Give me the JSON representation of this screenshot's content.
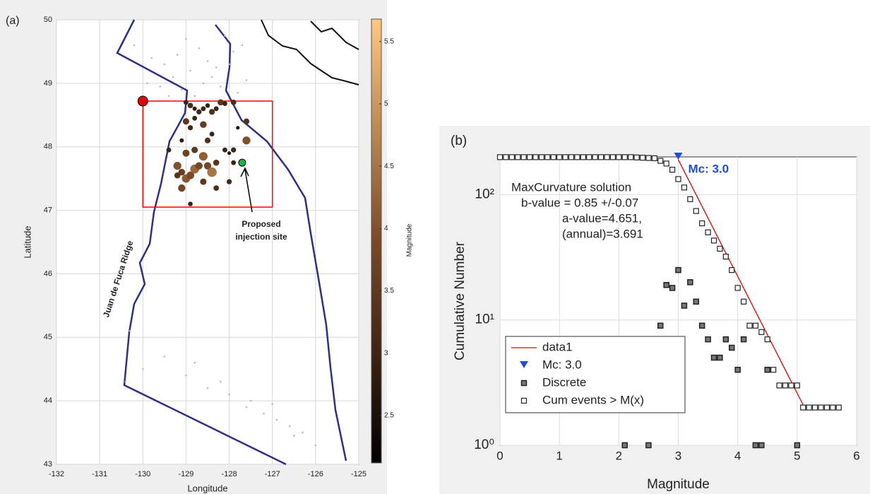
{
  "chart_data": [
    {
      "type": "map",
      "label": "(a)",
      "xlabel": "Longitude",
      "ylabel": "Latitude",
      "xlim": [
        -132,
        -125
      ],
      "ylim": [
        43,
        50
      ],
      "xticks": [
        -132,
        -131,
        -130,
        -129,
        -128,
        -127,
        -126,
        -125
      ],
      "yticks": [
        43,
        44,
        45,
        46,
        47,
        48,
        49,
        50
      ],
      "grid": true,
      "colorbar": {
        "label": "Magnitude",
        "clim": [
          2.12,
          5.68
        ],
        "ticks": [
          2.5,
          3,
          3.5,
          4,
          4.5,
          5,
          5.5
        ],
        "colors": [
          "#000000",
          "#7a4a26",
          "#ffc77f"
        ]
      },
      "background": {
        "color": "#b8b8d2",
        "x": [
          -130.2,
          -129.8,
          -129.5,
          -129.3,
          -129.1,
          -128.9,
          -128.6,
          -128.4,
          -128.2,
          -128.0,
          -127.9,
          -127.7,
          -129.6,
          -129.2,
          -128.8,
          -128.5,
          -128.3,
          -129.0,
          -128.7,
          -127.8,
          -129.9,
          -129.4,
          -128.1,
          -127.6,
          -130.4,
          -130.0,
          -129.0,
          -128.5,
          -128.0,
          -127.5,
          -127.2,
          -126.9,
          -126.6,
          -126.3,
          -126.0,
          -128.8,
          -128.2,
          -127.6,
          -127.0,
          -126.5,
          -129.5,
          -130.3
        ],
        "y": [
          49.6,
          49.4,
          49.3,
          49.1,
          48.9,
          49.2,
          49.0,
          49.1,
          48.95,
          49.3,
          49.5,
          49.6,
          48.95,
          49.45,
          48.8,
          49.35,
          49.25,
          49.7,
          49.55,
          48.85,
          49.0,
          48.8,
          49.75,
          49.05,
          44.3,
          44.5,
          44.4,
          44.2,
          44.1,
          44.0,
          43.8,
          43.7,
          43.6,
          43.5,
          43.3,
          44.6,
          44.3,
          43.9,
          43.95,
          43.45,
          44.7,
          45.1
        ]
      },
      "events": {
        "x": [
          -129.0,
          -128.9,
          -128.8,
          -128.7,
          -128.6,
          -128.5,
          -128.4,
          -128.3,
          -128.2,
          -128.1,
          -127.9,
          -129.0,
          -128.9,
          -128.8,
          -128.6,
          -128.5,
          -128.4,
          -127.8,
          -127.6,
          -127.6,
          -129.1,
          -129.4,
          -129.0,
          -128.8,
          -128.6,
          -128.5,
          -128.3,
          -128.1,
          -128.0,
          -127.9,
          -129.2,
          -129.1,
          -129.0,
          -128.9,
          -128.8,
          -128.7,
          -128.6,
          -128.3,
          -129.1,
          -128.9,
          -129.2,
          -128.4,
          -127.9,
          -128.0
        ],
        "y": [
          48.7,
          48.65,
          48.6,
          48.55,
          48.6,
          48.65,
          48.55,
          48.6,
          48.7,
          48.68,
          48.7,
          48.4,
          48.3,
          48.45,
          48.35,
          48.1,
          48.2,
          48.3,
          48.1,
          48.4,
          48.1,
          47.95,
          47.9,
          47.95,
          47.85,
          47.7,
          47.75,
          47.95,
          47.9,
          47.95,
          47.7,
          47.6,
          47.5,
          47.55,
          47.65,
          47.7,
          47.45,
          47.35,
          47.35,
          47.1,
          47.55,
          47.6,
          47.75,
          47.45
        ],
        "values": [
          3.0,
          3.2,
          2.8,
          3.1,
          3.0,
          2.9,
          3.3,
          3.0,
          3.4,
          3.0,
          3.2,
          3.5,
          3.1,
          3.0,
          3.6,
          3.3,
          3.0,
          2.6,
          4.0,
          3.3,
          2.8,
          3.0,
          3.7,
          3.5,
          4.2,
          3.8,
          3.4,
          3.0,
          2.6,
          3.1,
          4.0,
          3.6,
          4.1,
          3.9,
          4.3,
          3.8,
          3.5,
          3.2,
          3.8,
          2.9,
          3.4,
          4.5,
          3.0,
          3.1
        ]
      },
      "region": {
        "x": [
          -130,
          -127
        ],
        "y": [
          47.05,
          48.72
        ],
        "color": "#ff0000"
      },
      "sites": {
        "x": [
          -130,
          -127.7
        ],
        "y": [
          48.72,
          47.75
        ],
        "colors": [
          "#e00000",
          "#1db34a"
        ]
      },
      "annotations": [
        "Juan de Fuca Ridge",
        "Proposed",
        "injection site"
      ]
    },
    {
      "type": "line",
      "label": "(b)",
      "xlabel": "Magnitude",
      "ylabel": "Cumulative Number",
      "xlim": [
        0,
        6
      ],
      "ylim": [
        1,
        200
      ],
      "log_y": true,
      "xticks": [
        0,
        1,
        2,
        3,
        4,
        5,
        6
      ],
      "yticks": [
        {
          "value": 1,
          "label": "10⁰"
        },
        {
          "value": 10,
          "label": "10¹"
        },
        {
          "value": 100,
          "label": "10²"
        }
      ],
      "grid": true,
      "legend": "lower-left",
      "annotation": [
        "MaxCurvature solution",
        "b-value = 0.85 +/-0.07",
        "a-value=4.651,",
        "(annual)=3.691"
      ],
      "series": [
        {
          "name": "data1",
          "color": "#e00000",
          "kind": "line",
          "x": [
            3.0,
            5.1
          ],
          "values": [
            190,
            2.1
          ]
        },
        {
          "name": "Mc: 3.0",
          "color": "#1f4fd6",
          "kind": "triangle",
          "x": [
            3.0
          ],
          "values": [
            200
          ]
        },
        {
          "name": "Discrete",
          "color": "#222222",
          "kind": "filled-square",
          "x": [
            2.1,
            2.5,
            2.7,
            2.8,
            2.9,
            3.0,
            3.1,
            3.2,
            3.3,
            3.4,
            3.5,
            3.6,
            3.7,
            3.8,
            3.9,
            4.0,
            4.1,
            4.3,
            4.4,
            4.5,
            5.0
          ],
          "values": [
            1,
            1,
            9,
            19,
            18,
            25,
            13,
            20,
            14,
            9,
            7,
            5,
            5,
            7,
            6,
            4,
            7,
            1,
            1,
            4,
            1
          ]
        },
        {
          "name": "Cum events > M(x)",
          "color": "#222222",
          "kind": "square",
          "x": [
            0,
            0.1,
            0.2,
            0.3,
            0.4,
            0.5,
            0.6,
            0.7,
            0.8,
            0.9,
            1.0,
            1.1,
            1.2,
            1.3,
            1.4,
            1.5,
            1.6,
            1.7,
            1.8,
            1.9,
            2.0,
            2.1,
            2.2,
            2.3,
            2.4,
            2.5,
            2.6,
            2.7,
            2.8,
            2.9,
            3.0,
            3.1,
            3.2,
            3.3,
            3.4,
            3.5,
            3.6,
            3.7,
            3.8,
            3.9,
            4.0,
            4.1,
            4.2,
            4.3,
            4.4,
            4.5,
            4.6,
            4.7,
            4.8,
            4.9,
            5.0,
            5.1,
            5.2,
            5.3,
            5.4,
            5.5,
            5.6,
            5.7
          ],
          "values": [
            199,
            199,
            199,
            199,
            199,
            199,
            199,
            199,
            199,
            199,
            199,
            199,
            199,
            199,
            199,
            199,
            199,
            199,
            199,
            199,
            199,
            199,
            199,
            198,
            197,
            196,
            195,
            186,
            177,
            158,
            133,
            114,
            92,
            74,
            59,
            50,
            43,
            37,
            32,
            25,
            18,
            14,
            9,
            9,
            8,
            7,
            4,
            3,
            3,
            3,
            3,
            2,
            2,
            2,
            2,
            2,
            2,
            2
          ]
        }
      ]
    }
  ]
}
